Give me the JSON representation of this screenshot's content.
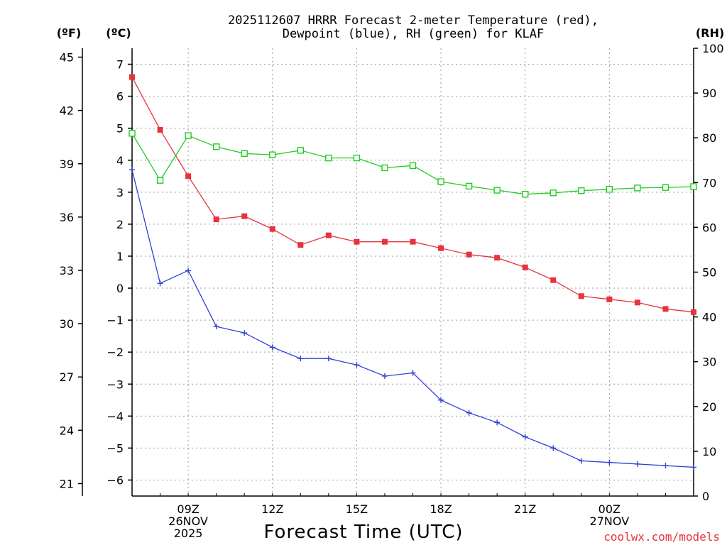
{
  "chart_data": {
    "type": "line",
    "title_line1": "2025112607 HRRR Forecast 2-meter Temperature (red),",
    "title_line2": "Dewpoint (blue), RH (green) for KLAF",
    "xlabel": "Forecast Time (UTC)",
    "credit": "coolwx.com/models",
    "unit_labels": {
      "fahrenheit": "(ºF)",
      "celsius": "(ºC)",
      "rh": "(RH)"
    },
    "x_range": [
      7,
      27
    ],
    "hours": [
      7,
      8,
      9,
      10,
      11,
      12,
      13,
      14,
      15,
      16,
      17,
      18,
      19,
      20,
      21,
      22,
      23,
      24,
      25,
      26,
      27
    ],
    "x_ticks": [
      {
        "hour": 9,
        "lines": [
          "09Z",
          "26NOV",
          "2025"
        ]
      },
      {
        "hour": 12,
        "lines": [
          "12Z"
        ]
      },
      {
        "hour": 15,
        "lines": [
          "15Z"
        ]
      },
      {
        "hour": 18,
        "lines": [
          "18Z"
        ]
      },
      {
        "hour": 21,
        "lines": [
          "21Z"
        ]
      },
      {
        "hour": 24,
        "lines": [
          "00Z",
          "27NOV"
        ]
      }
    ],
    "celsius_axis": {
      "min": -6.5,
      "max": 7.5,
      "ticks": [
        7,
        6,
        5,
        4,
        3,
        2,
        1,
        0,
        -1,
        -2,
        -3,
        -4,
        -5,
        -6
      ]
    },
    "fahrenheit_axis": {
      "ticks": [
        45,
        42,
        39,
        36,
        33,
        30,
        27,
        24,
        21
      ]
    },
    "rh_axis": {
      "min": 0,
      "max": 100,
      "ticks": [
        0,
        10,
        20,
        30,
        40,
        50,
        60,
        70,
        80,
        90,
        100
      ]
    },
    "series": [
      {
        "name": "Temperature (°C)",
        "color": "#e8323c",
        "marker": "filled-square",
        "axis": "celsius",
        "values": [
          6.6,
          4.95,
          3.5,
          2.15,
          2.25,
          1.85,
          1.35,
          1.65,
          1.45,
          1.45,
          1.45,
          1.25,
          1.05,
          0.95,
          0.65,
          0.25,
          -0.25,
          -0.35,
          -0.45,
          -0.65,
          -0.75
        ]
      },
      {
        "name": "Dewpoint (°C)",
        "color": "#3040d8",
        "marker": "plus",
        "axis": "celsius",
        "values": [
          3.7,
          0.15,
          0.55,
          -1.2,
          -1.4,
          -1.85,
          -2.2,
          -2.2,
          -2.4,
          -2.75,
          -2.65,
          -3.5,
          -3.9,
          -4.2,
          -4.65,
          -5.0,
          -5.4,
          -5.45,
          -5.5,
          -5.55,
          -5.6
        ]
      },
      {
        "name": "RH (%)",
        "color": "#22cc22",
        "marker": "open-square",
        "axis": "rh",
        "values": [
          81,
          70.5,
          80.5,
          78,
          76.5,
          76.2,
          77.2,
          75.5,
          75.5,
          73.3,
          73.8,
          70.2,
          69.2,
          68.3,
          67.4,
          67.7,
          68.2,
          68.5,
          68.8,
          68.9,
          69.1
        ]
      }
    ]
  }
}
